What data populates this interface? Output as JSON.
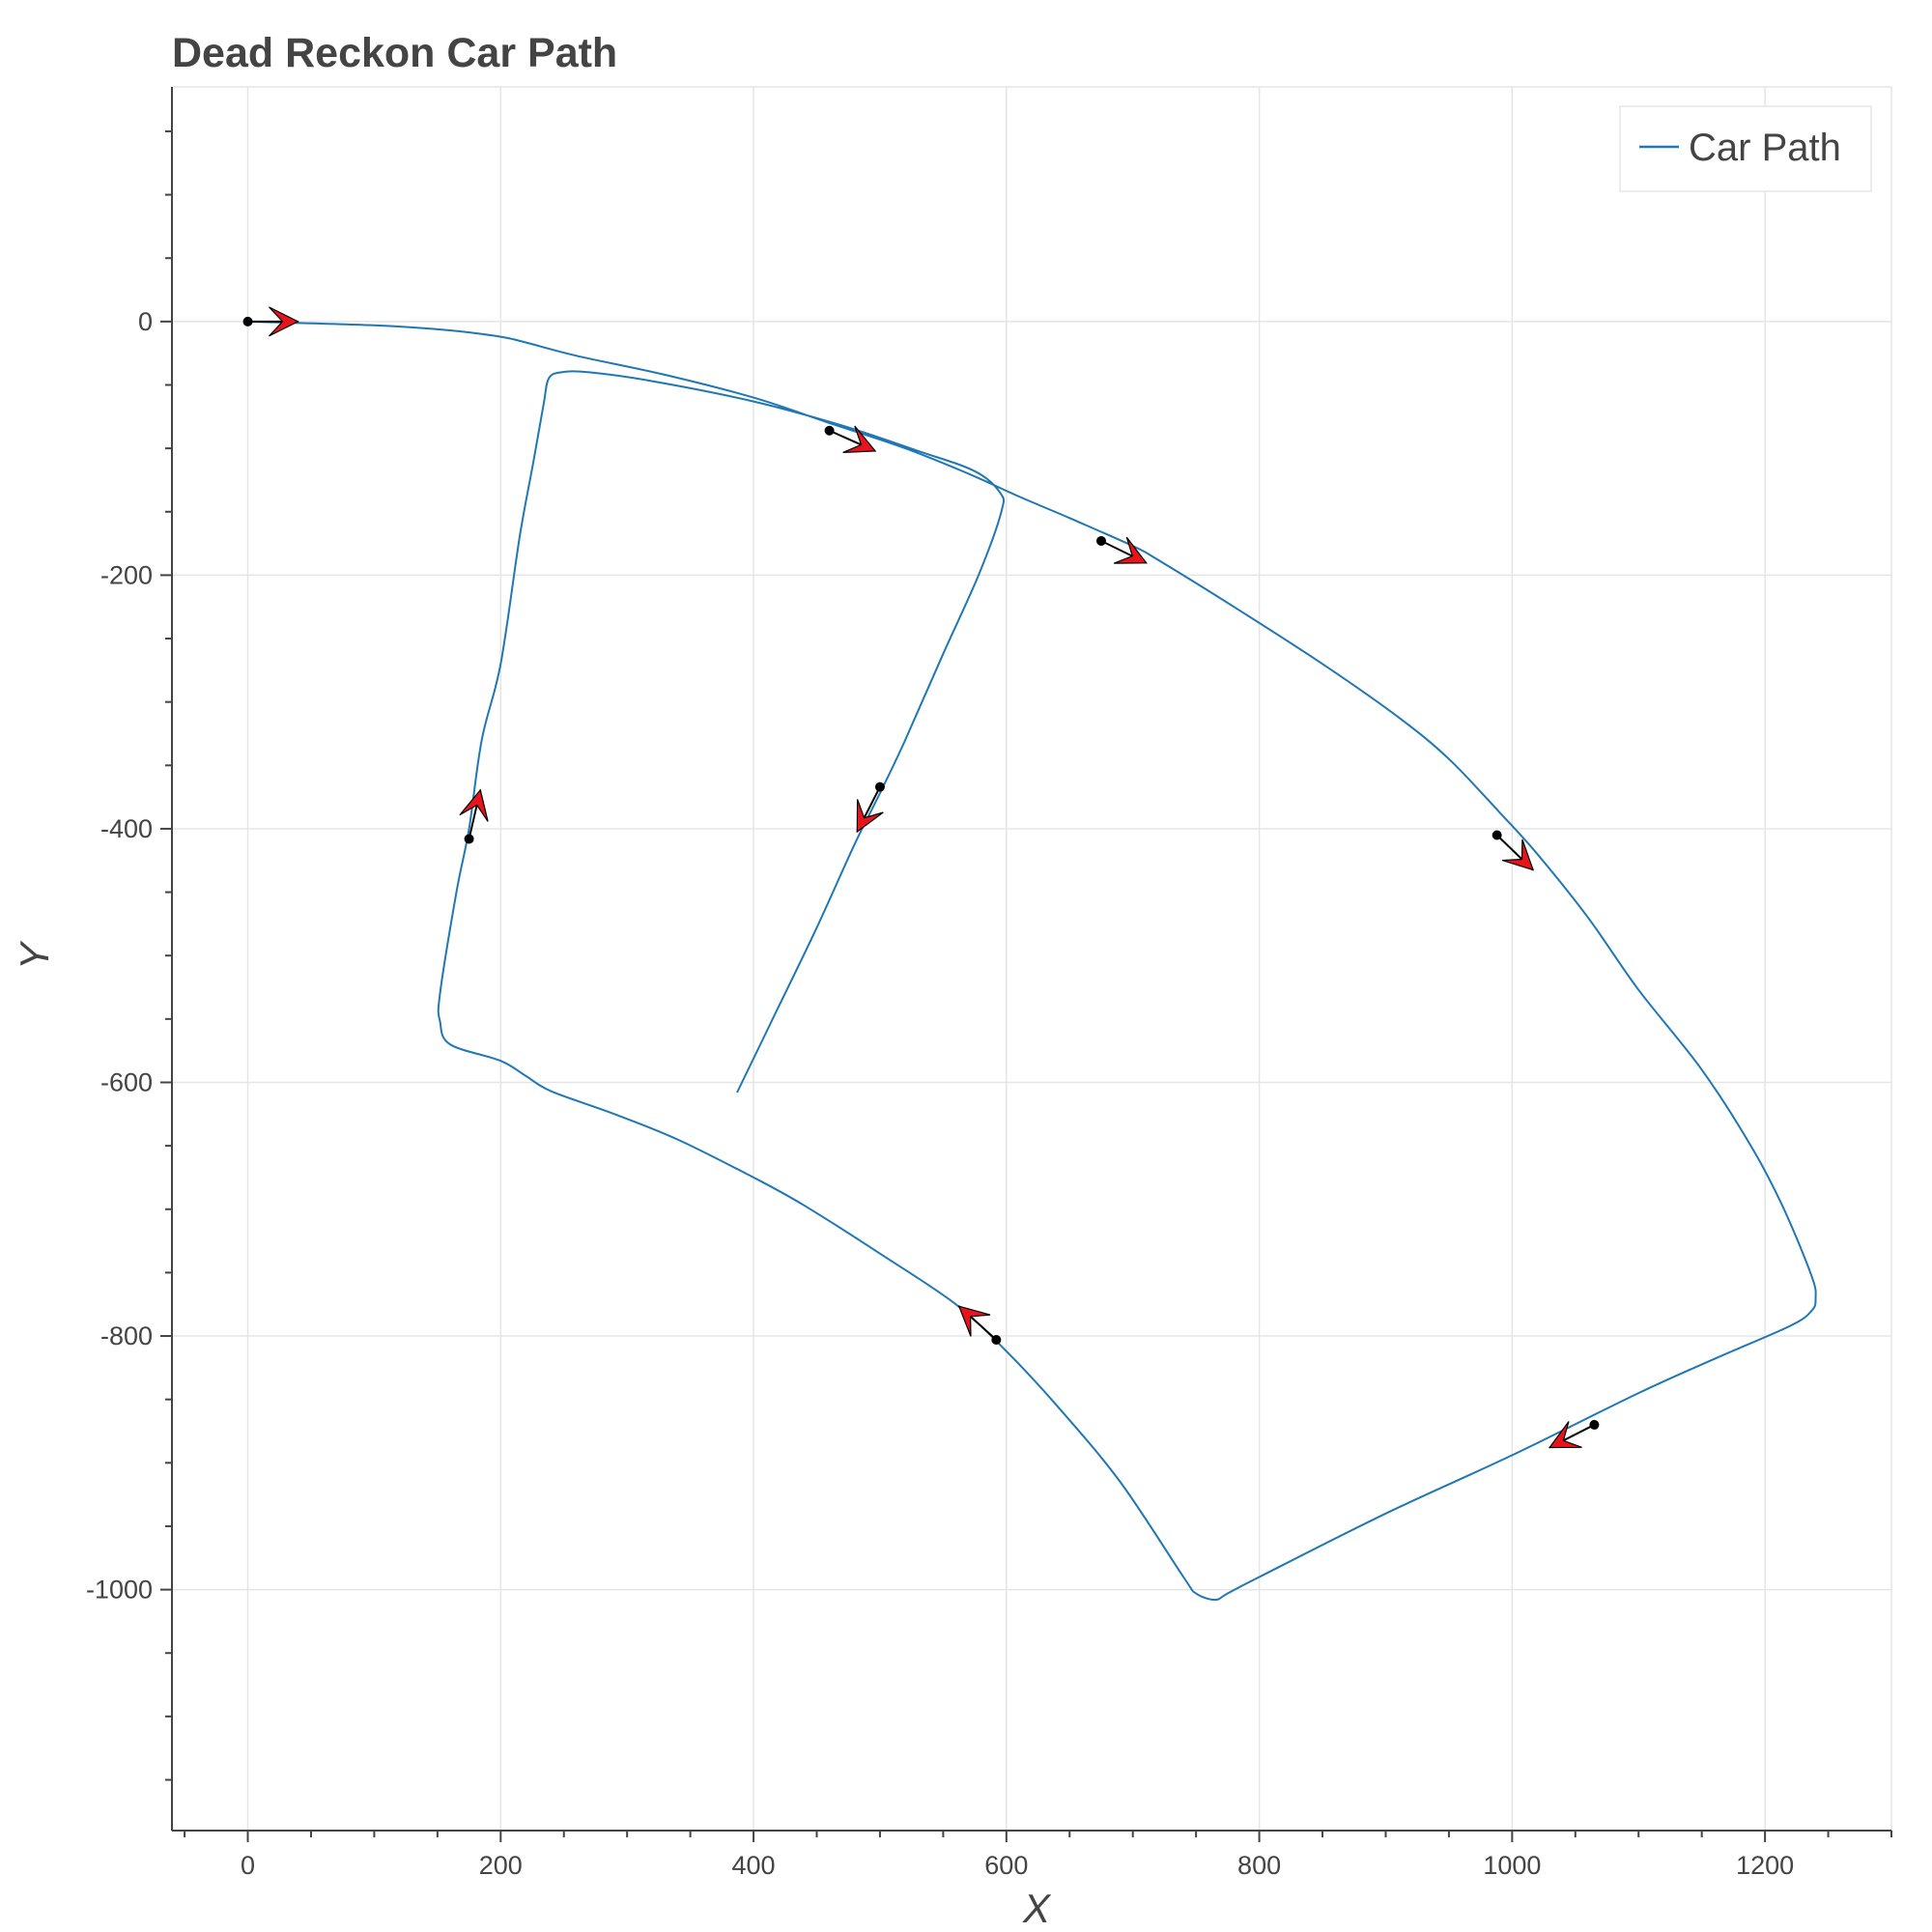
{
  "chart_data": {
    "type": "line",
    "title": "Dead Reckon Car Path",
    "xlabel": "X",
    "ylabel": "Y",
    "xlim": [
      -60,
      1300
    ],
    "ylim": [
      -1190,
      185
    ],
    "x_ticks": [
      0,
      200,
      400,
      600,
      800,
      1000,
      1200
    ],
    "x_tick_labels": [
      "0",
      "200",
      "400",
      "600",
      "800",
      "1000",
      "1200"
    ],
    "y_ticks": [
      0,
      -200,
      -400,
      -600,
      -800,
      -1000
    ],
    "y_tick_labels": [
      "0",
      "-200",
      "-400",
      "-600",
      "-800",
      "-1000"
    ],
    "grid": true,
    "legend": {
      "position": "top-right",
      "entries": [
        "Car Path"
      ]
    },
    "colors": {
      "path": "#1f77b4",
      "arrow_fill": "#e8141c",
      "arrow_stroke": "#000000",
      "grid": "#e5e5e5",
      "axis": "#444444"
    },
    "series": [
      {
        "name": "Car Path",
        "points": [
          [
            0,
            0
          ],
          [
            100,
            -3
          ],
          [
            160,
            -7
          ],
          [
            200,
            -12
          ],
          [
            218,
            -16
          ],
          [
            260,
            -27
          ],
          [
            330,
            -42
          ],
          [
            400,
            -60
          ],
          [
            460,
            -80
          ],
          [
            520,
            -100
          ],
          [
            570,
            -120
          ],
          [
            610,
            -138
          ],
          [
            650,
            -155
          ],
          [
            700,
            -177
          ],
          [
            720,
            -188
          ],
          [
            780,
            -225
          ],
          [
            850,
            -270
          ],
          [
            910,
            -312
          ],
          [
            950,
            -345
          ],
          [
            990,
            -387
          ],
          [
            1020,
            -420
          ],
          [
            1060,
            -470
          ],
          [
            1100,
            -527
          ],
          [
            1150,
            -590
          ],
          [
            1190,
            -652
          ],
          [
            1215,
            -700
          ],
          [
            1237,
            -753
          ],
          [
            1240,
            -770
          ],
          [
            1237,
            -780
          ],
          [
            1220,
            -792
          ],
          [
            1160,
            -818
          ],
          [
            1100,
            -845
          ],
          [
            1000,
            -894
          ],
          [
            900,
            -940
          ],
          [
            800,
            -990
          ],
          [
            775,
            -1003
          ],
          [
            765,
            -1008
          ],
          [
            750,
            -1003
          ],
          [
            740,
            -990
          ],
          [
            690,
            -915
          ],
          [
            640,
            -855
          ],
          [
            600,
            -812
          ],
          [
            560,
            -775
          ],
          [
            500,
            -735
          ],
          [
            440,
            -697
          ],
          [
            400,
            -675
          ],
          [
            340,
            -645
          ],
          [
            290,
            -625
          ],
          [
            240,
            -607
          ],
          [
            220,
            -595
          ],
          [
            200,
            -583
          ],
          [
            160,
            -570
          ],
          [
            152,
            -552
          ],
          [
            152,
            -530
          ],
          [
            165,
            -450
          ],
          [
            175,
            -400
          ],
          [
            185,
            -330
          ],
          [
            200,
            -270
          ],
          [
            215,
            -170
          ],
          [
            226,
            -110
          ],
          [
            234,
            -65
          ],
          [
            238,
            -45
          ],
          [
            248,
            -40
          ],
          [
            270,
            -40
          ],
          [
            320,
            -47
          ],
          [
            400,
            -63
          ],
          [
            470,
            -82
          ],
          [
            530,
            -102
          ],
          [
            575,
            -118
          ],
          [
            595,
            -135
          ],
          [
            596,
            -150
          ],
          [
            578,
            -200
          ],
          [
            550,
            -262
          ],
          [
            520,
            -330
          ],
          [
            500,
            -372
          ],
          [
            480,
            -412
          ],
          [
            450,
            -478
          ],
          [
            420,
            -540
          ],
          [
            387,
            -608
          ]
        ]
      }
    ],
    "heading_markers": [
      {
        "x": 0,
        "y": 0,
        "heading_deg": 0
      },
      {
        "x": 460,
        "y": -86,
        "heading_deg": -24
      },
      {
        "x": 675,
        "y": -173,
        "heading_deg": -26
      },
      {
        "x": 988,
        "y": -405,
        "heading_deg": -44
      },
      {
        "x": 1065,
        "y": -870,
        "heading_deg": -153
      },
      {
        "x": 592,
        "y": -803,
        "heading_deg": 138
      },
      {
        "x": 175,
        "y": -408,
        "heading_deg": 77
      },
      {
        "x": 500,
        "y": -367,
        "heading_deg": -117
      }
    ]
  }
}
